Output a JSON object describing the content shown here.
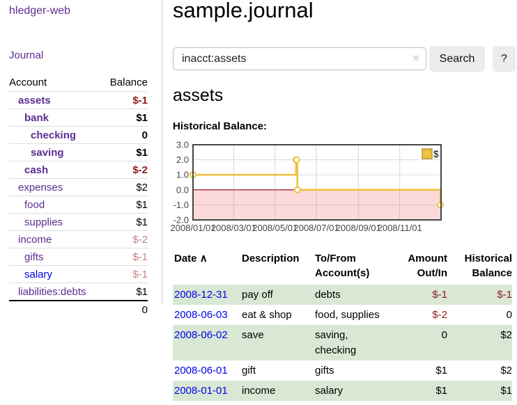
{
  "app": {
    "brand": "hledger-web",
    "journal_link": "Journal"
  },
  "sidebar": {
    "header": {
      "account": "Account",
      "balance": "Balance"
    },
    "accounts": [
      {
        "name": "assets",
        "level": 1,
        "bold": true,
        "balance": "$-1"
      },
      {
        "name": "bank",
        "level": 2,
        "bold": true,
        "balance": "$1"
      },
      {
        "name": "checking",
        "level": 3,
        "bold": true,
        "balance": "0"
      },
      {
        "name": "saving",
        "level": 3,
        "bold": true,
        "balance": "$1"
      },
      {
        "name": "cash",
        "level": 2,
        "bold": true,
        "balance": "$-2"
      },
      {
        "name": "expenses",
        "level": 1,
        "bold": false,
        "balance": "$2"
      },
      {
        "name": "food",
        "level": 2,
        "bold": false,
        "balance": "$1"
      },
      {
        "name": "supplies",
        "level": 2,
        "bold": false,
        "balance": "$1"
      },
      {
        "name": "income",
        "level": 1,
        "bold": false,
        "balance": "$-2"
      },
      {
        "name": "gifts",
        "level": 2,
        "bold": false,
        "balance": "$-1"
      },
      {
        "name": "salary",
        "level": 2,
        "bold": false,
        "balance": "$-1",
        "unvisited": true
      },
      {
        "name": "liabilities:debts",
        "level": 1,
        "bold": false,
        "balance": "$1"
      }
    ],
    "total": "0"
  },
  "main": {
    "title": "sample.journal",
    "search": {
      "value": "inacct:assets",
      "clear_icon": "×",
      "button": "Search",
      "help": "?"
    },
    "heading": "assets",
    "chart_label": "Historical Balance:"
  },
  "chart_data": {
    "type": "line",
    "title": "Historical Balance:",
    "step": true,
    "series": [
      {
        "name": "$",
        "color": "#edc240",
        "points": [
          [
            "2008-01-01",
            1
          ],
          [
            "2008-06-01",
            2
          ],
          [
            "2008-06-02",
            2
          ],
          [
            "2008-06-03",
            0
          ],
          [
            "2008-12-31",
            -1
          ]
        ]
      }
    ],
    "x_range": [
      "2008-01-01",
      "2009-01-01"
    ],
    "x_ticks": [
      {
        "date": "2008-01-01",
        "label": "2008/01/01"
      },
      {
        "date": "2008-03-01",
        "label": "2008/03/01"
      },
      {
        "date": "2008-05-01",
        "label": "2008/05/01"
      },
      {
        "date": "2008-07-01",
        "label": "2008/07/01"
      },
      {
        "date": "2008-09-01",
        "label": "2008/09/01"
      },
      {
        "date": "2008-11-01",
        "label": "2008/11/01"
      }
    ],
    "y_ticks": [
      "3.0",
      "2.0",
      "1.0",
      "0.0",
      "-1.0",
      "-2.0"
    ],
    "ylim": [
      -2,
      3
    ],
    "grid": true,
    "legend_position": "top-right",
    "negative_region_shaded": true,
    "zero_line_color": "#8f0000"
  },
  "register": {
    "columns": [
      "Date",
      "Description",
      "To/From Account(s)",
      "Amount Out/In",
      "Historical Balance"
    ],
    "sort_icon": "∧",
    "rows": [
      {
        "date": "2008-12-31",
        "description": "pay off",
        "accounts": "debts",
        "amount": "$-1",
        "balance": "$-1"
      },
      {
        "date": "2008-06-03",
        "description": "eat & shop",
        "accounts": "food, supplies",
        "amount": "$-2",
        "balance": "0"
      },
      {
        "date": "2008-06-02",
        "description": "save",
        "accounts": "saving, checking",
        "amount": "0",
        "balance": "$2"
      },
      {
        "date": "2008-06-01",
        "description": "gift",
        "accounts": "gifts",
        "amount": "$1",
        "balance": "$2"
      },
      {
        "date": "2008-01-01",
        "description": "income",
        "accounts": "salary",
        "amount": "$1",
        "balance": "$1"
      }
    ]
  }
}
